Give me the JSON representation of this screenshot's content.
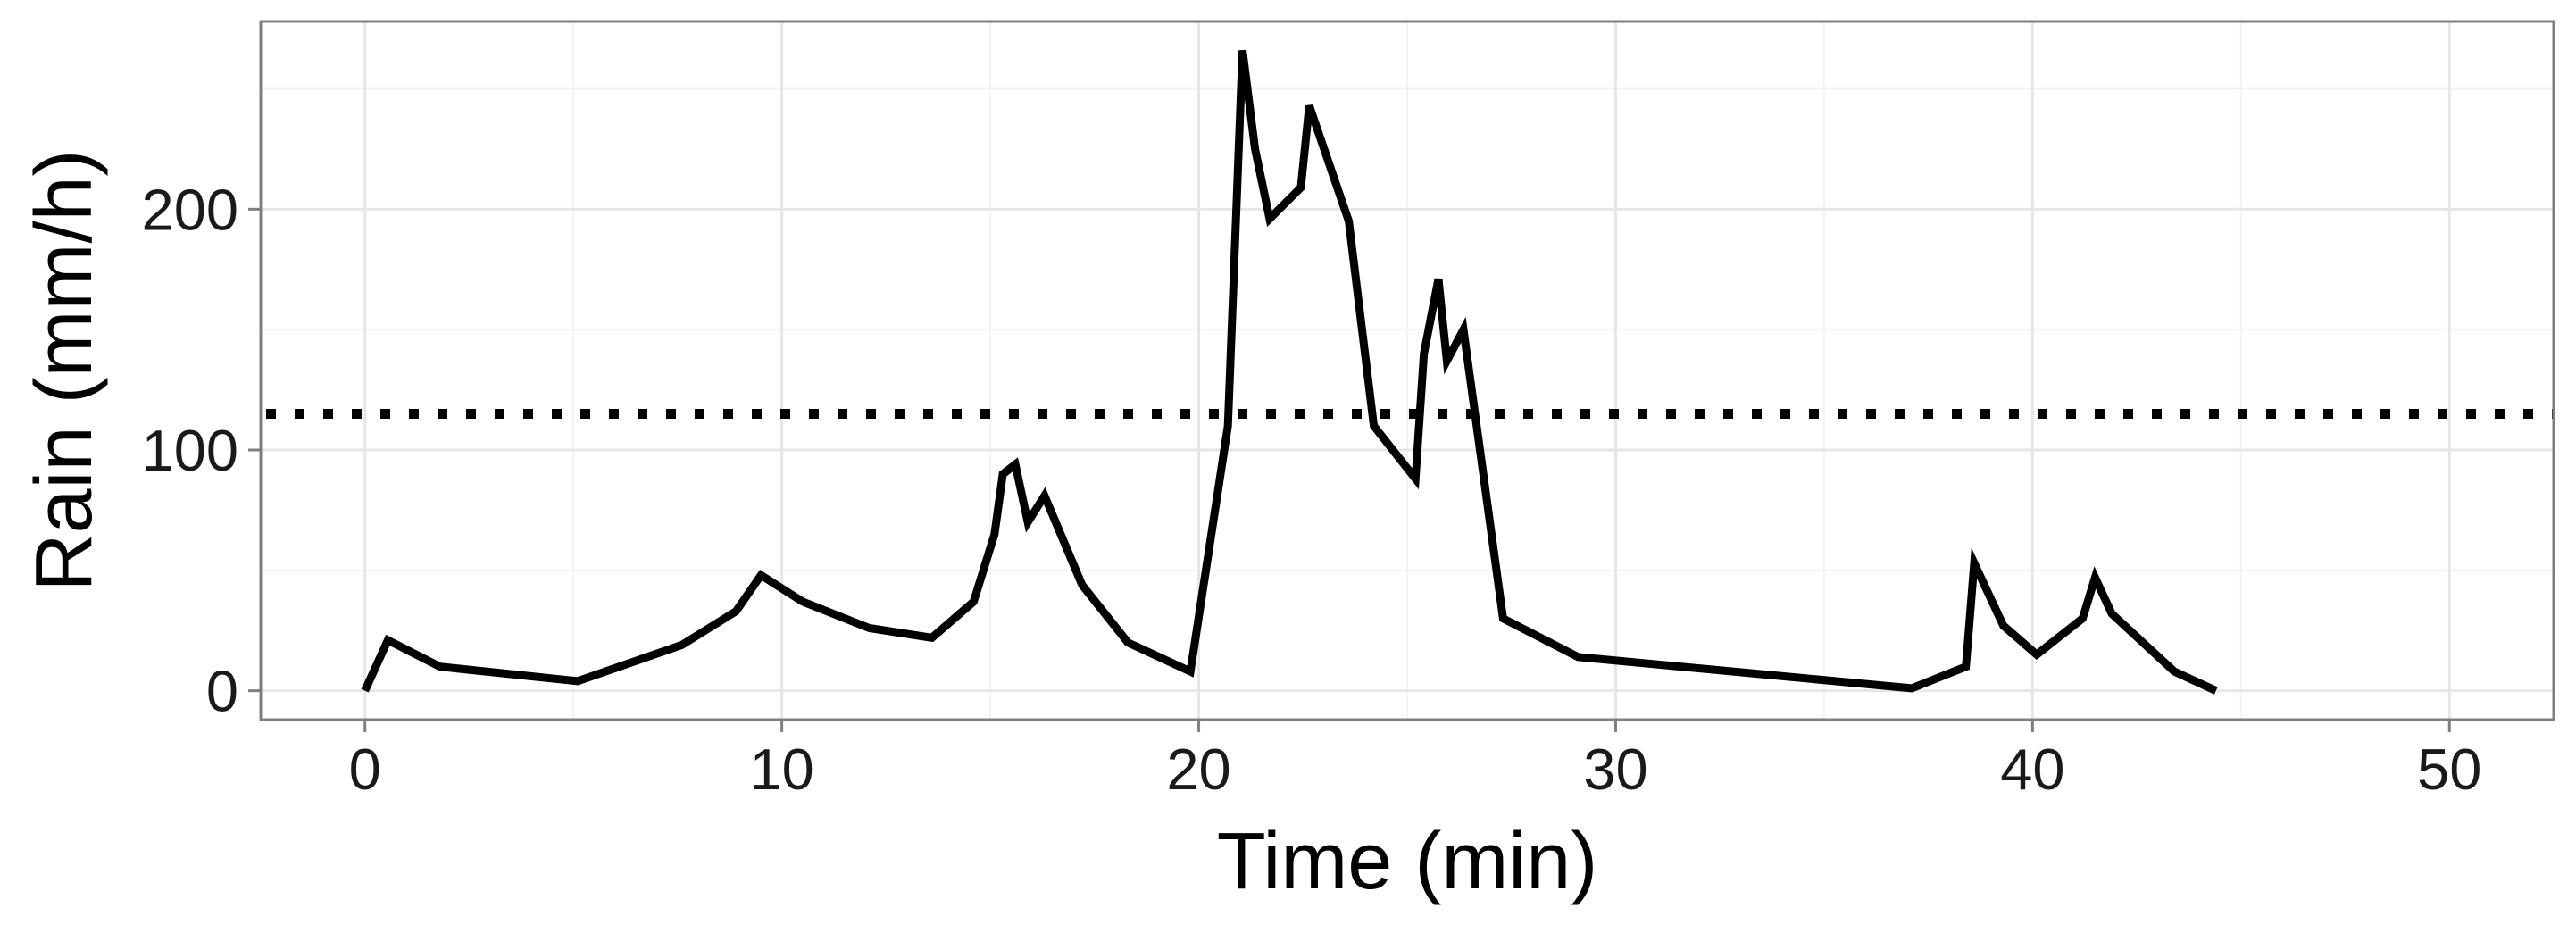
{
  "chart_data": {
    "type": "line",
    "xlabel": "Time (min)",
    "ylabel": "Rain (mm/h)",
    "xlim": [
      -2.5,
      52.5
    ],
    "ylim": [
      -12,
      278
    ],
    "xticks": [
      0,
      10,
      20,
      30,
      40,
      50
    ],
    "xtick_labels": [
      "0",
      "10",
      "20",
      "30",
      "40",
      "50"
    ],
    "yticks": [
      0,
      100,
      200
    ],
    "ytick_labels": [
      "0",
      "100",
      "200"
    ],
    "grid": true,
    "legend": "none",
    "colors": {
      "line": "#000000",
      "threshold": "#000000",
      "panel_border": "#7f7f7f",
      "grid": "#e6e6e6"
    },
    "series": [
      {
        "x": [
          0.0,
          0.55,
          1.8,
          5.1,
          7.6,
          8.9,
          9.5,
          10.5,
          12.1,
          13.6,
          14.6,
          15.1,
          15.3,
          15.6,
          15.9,
          16.3,
          17.2,
          18.3,
          19.8,
          20.7,
          21.05,
          21.35,
          21.7,
          22.45,
          22.65,
          23.6,
          24.2,
          25.2,
          25.4,
          25.75,
          25.95,
          26.35,
          27.3,
          29.1,
          37.1,
          38.4,
          38.6,
          39.3,
          40.1,
          41.2,
          41.5,
          41.9,
          43.4,
          44.4
        ],
        "y": [
          0,
          21,
          10,
          4,
          19,
          33,
          48,
          37,
          26,
          22,
          37,
          65,
          90,
          94,
          70,
          81,
          44,
          20,
          8,
          110,
          266,
          225,
          196,
          209,
          243,
          195,
          110,
          88,
          140,
          171,
          137,
          150,
          30,
          14,
          1,
          10,
          53,
          27,
          15,
          30,
          47,
          32,
          8,
          0
        ]
      }
    ],
    "threshold": {
      "y": 115,
      "style": "dotted"
    }
  }
}
